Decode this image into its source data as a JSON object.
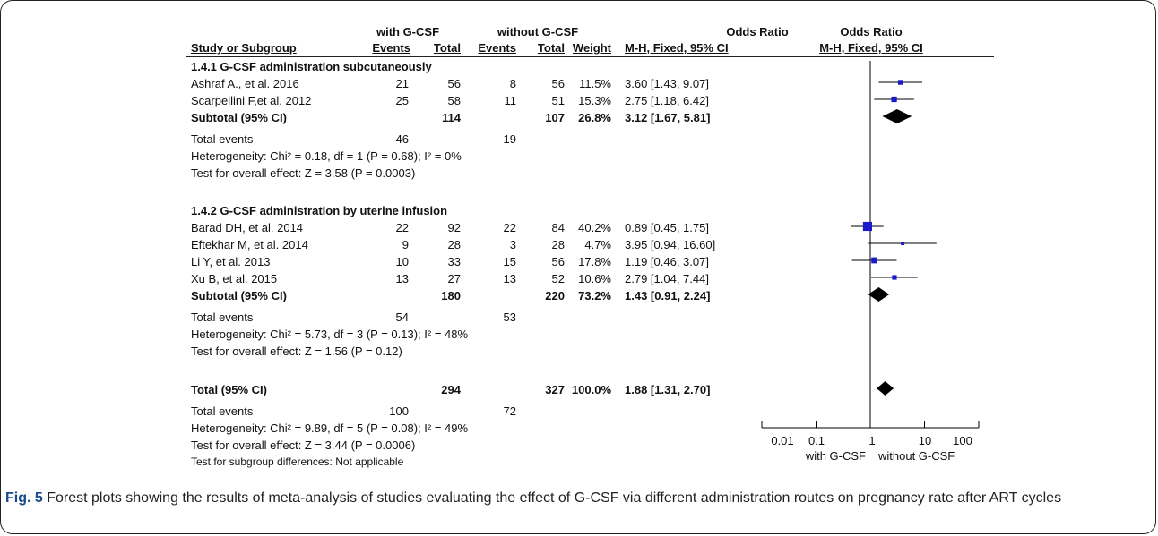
{
  "header": {
    "group1": "with G-CSF",
    "group2": "without G-CSF",
    "or_text": "Odds Ratio",
    "or_plot": "Odds Ratio",
    "col_study": "Study or Subgroup",
    "col_events1": "Events",
    "col_total1": "Total",
    "col_events2": "Events",
    "col_total2": "Total",
    "col_weight": "Weight",
    "col_method_text": "M-H, Fixed, 95% CI",
    "col_method_plot": "M-H, Fixed, 95% CI"
  },
  "subgroups": [
    {
      "title": "1.4.1 G-CSF administration subcutaneously",
      "studies": [
        {
          "name": "Ashraf A., et al. 2016",
          "e1": "21",
          "t1": "56",
          "e2": "8",
          "t2": "56",
          "weight": "11.5%",
          "ci": "3.60 [1.43, 9.07]"
        },
        {
          "name": "Scarpellini F,et al. 2012",
          "e1": "25",
          "t1": "58",
          "e2": "11",
          "t2": "51",
          "weight": "15.3%",
          "ci": "2.75 [1.18, 6.42]"
        }
      ],
      "subtotal": {
        "label": "Subtotal (95% CI)",
        "t1": "114",
        "t2": "107",
        "weight": "26.8%",
        "ci": "3.12 [1.67, 5.81]"
      },
      "total_events": {
        "label": "Total events",
        "e1": "46",
        "e2": "19"
      },
      "heterogeneity": "Heterogeneity: Chi² = 0.18, df = 1 (P = 0.68); I² = 0%",
      "overall": "Test for overall effect: Z = 3.58 (P = 0.0003)"
    },
    {
      "title": "1.4.2 G-CSF administration by uterine infusion",
      "studies": [
        {
          "name": "Barad DH, et al. 2014",
          "e1": "22",
          "t1": "92",
          "e2": "22",
          "t2": "84",
          "weight": "40.2%",
          "ci": "0.89 [0.45, 1.75]"
        },
        {
          "name": "Eftekhar M, et al. 2014",
          "e1": "9",
          "t1": "28",
          "e2": "3",
          "t2": "28",
          "weight": "4.7%",
          "ci": "3.95 [0.94, 16.60]"
        },
        {
          "name": "Li Y, et al. 2013",
          "e1": "10",
          "t1": "33",
          "e2": "15",
          "t2": "56",
          "weight": "17.8%",
          "ci": "1.19 [0.46, 3.07]"
        },
        {
          "name": "Xu B, et al. 2015",
          "e1": "13",
          "t1": "27",
          "e2": "13",
          "t2": "52",
          "weight": "10.6%",
          "ci": "2.79 [1.04, 7.44]"
        }
      ],
      "subtotal": {
        "label": "Subtotal (95% CI)",
        "t1": "180",
        "t2": "220",
        "weight": "73.2%",
        "ci": "1.43 [0.91, 2.24]"
      },
      "total_events": {
        "label": "Total events",
        "e1": "54",
        "e2": "53"
      },
      "heterogeneity": "Heterogeneity: Chi² = 5.73, df = 3 (P = 0.13); I² = 48%",
      "overall": "Test for overall effect: Z = 1.56 (P = 0.12)"
    }
  ],
  "total": {
    "label": "Total (95% CI)",
    "t1": "294",
    "t2": "327",
    "weight": "100.0%",
    "ci": "1.88 [1.31, 2.70]"
  },
  "total_events": {
    "label": "Total events",
    "e1": "100",
    "e2": "72"
  },
  "total_heterogeneity": "Heterogeneity: Chi² = 9.89, df = 5 (P = 0.08); I² = 49%",
  "total_overall": "Test for overall effect: Z = 3.44 (P = 0.0006)",
  "subgroup_diff": "Test for subgroup differences: Not applicable",
  "caption": {
    "label": "Fig. 5",
    "text": "Forest plots showing the results of meta-analysis of studies evaluating the effect of G-CSF via different administration routes on pregnancy rate after ART cycles"
  },
  "colors": {
    "study_marker": "#1a1acc",
    "diamond": "#000000",
    "lines": "#000000"
  },
  "chart_data": {
    "type": "forest",
    "x_scale": "log",
    "xlim": [
      0.01,
      100
    ],
    "x_ticks": [
      "0.01",
      "0.1",
      "1",
      "10",
      "100"
    ],
    "xlabel_left": "with G-CSF",
    "xlabel_right": "without G-CSF",
    "studies": [
      {
        "name": "Ashraf A., et al. 2016",
        "or": 3.6,
        "lo": 1.43,
        "hi": 9.07,
        "weight": 11.5
      },
      {
        "name": "Scarpellini F,et al. 2012",
        "or": 2.75,
        "lo": 1.18,
        "hi": 6.42,
        "weight": 15.3
      },
      {
        "name": "Barad DH, et al. 2014",
        "or": 0.89,
        "lo": 0.45,
        "hi": 1.75,
        "weight": 40.2
      },
      {
        "name": "Eftekhar M, et al. 2014",
        "or": 3.95,
        "lo": 0.94,
        "hi": 16.6,
        "weight": 4.7
      },
      {
        "name": "Li Y, et al. 2013",
        "or": 1.19,
        "lo": 0.46,
        "hi": 3.07,
        "weight": 17.8
      },
      {
        "name": "Xu B, et al. 2015",
        "or": 2.79,
        "lo": 1.04,
        "hi": 7.44,
        "weight": 10.6
      }
    ],
    "subtotals": [
      {
        "name": "Subtotal 1.4.1",
        "or": 3.12,
        "lo": 1.67,
        "hi": 5.81
      },
      {
        "name": "Subtotal 1.4.2",
        "or": 1.43,
        "lo": 0.91,
        "hi": 2.24
      }
    ],
    "overall": {
      "name": "Total",
      "or": 1.88,
      "lo": 1.31,
      "hi": 2.7
    }
  }
}
